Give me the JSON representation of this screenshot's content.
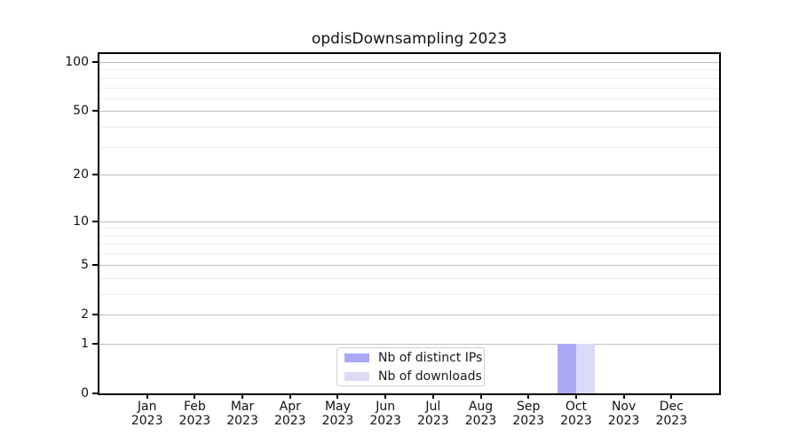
{
  "chart_data": {
    "type": "bar",
    "title": "opdisDownsampling 2023",
    "categories": [
      "Jan",
      "Feb",
      "Mar",
      "Apr",
      "May",
      "Jun",
      "Jul",
      "Aug",
      "Sep",
      "Oct",
      "Nov",
      "Dec"
    ],
    "category_year": "2023",
    "series": [
      {
        "name": "Nb of distinct IPs",
        "color": "#a9a9f4",
        "values": [
          0,
          0,
          0,
          0,
          0,
          0,
          0,
          0,
          0,
          1,
          0,
          0
        ]
      },
      {
        "name": "Nb of downloads",
        "color": "#dbdbf8",
        "values": [
          0,
          0,
          0,
          0,
          0,
          0,
          0,
          0,
          0,
          1,
          0,
          0
        ]
      }
    ],
    "xlabel": "",
    "ylabel": "",
    "yscale": "log1p",
    "ylim": [
      0,
      100
    ],
    "yticks": [
      0,
      1,
      2,
      5,
      10,
      20,
      50,
      100
    ],
    "yticks_minor": [
      3,
      4,
      6,
      7,
      8,
      9,
      30,
      40,
      60,
      70,
      80,
      90
    ],
    "grid": {
      "axis": "y",
      "major_color": "#bdbdbd",
      "minor_color": "#ececec"
    },
    "legend": {
      "position": "lower center",
      "border_color": "#d0d0d0"
    },
    "colors": {
      "background": "#ffffff",
      "spine": "#000000",
      "text": "#111111"
    }
  }
}
